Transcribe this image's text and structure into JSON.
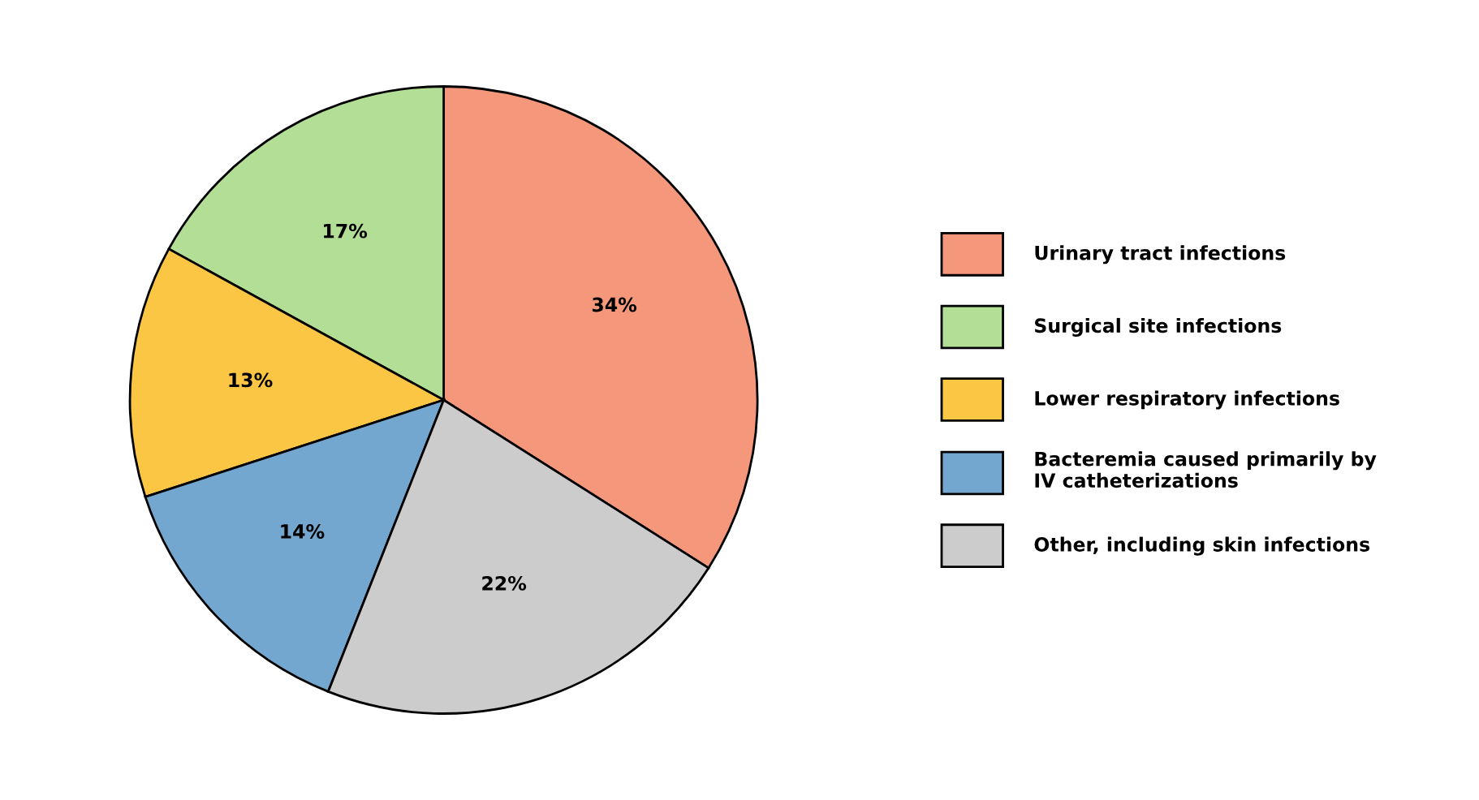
{
  "chart_data": {
    "type": "pie",
    "categories": [
      "Urinary tract infections",
      "Surgical site infections",
      "Lower respiratory infections",
      "Bacteremia caused primarily by IV catheterizations",
      "Other, including skin infections"
    ],
    "values": [
      34,
      17,
      13,
      14,
      22
    ],
    "value_labels": [
      "34%",
      "17%",
      "13%",
      "14%",
      "22%"
    ],
    "colors": [
      "#f4977a",
      "#b3de95",
      "#fbc643",
      "#74a7cf",
      "#cccccc"
    ],
    "legend": "right"
  }
}
